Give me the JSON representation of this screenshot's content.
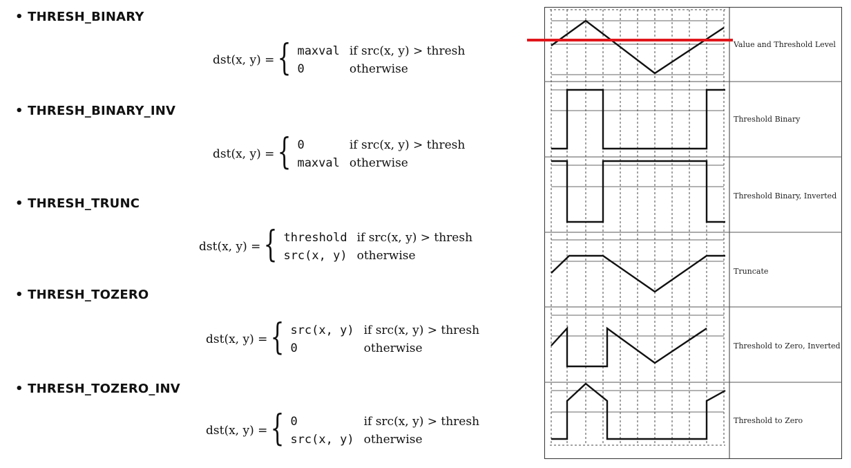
{
  "modes": [
    {
      "name": "• THRESH_BINARY",
      "lhs": "dst(x, y) = ",
      "cases": [
        [
          "maxval",
          "if src(x, y) > thresh"
        ],
        [
          "0",
          "otherwise"
        ]
      ]
    },
    {
      "name": "• THRESH_BINARY_INV",
      "lhs": "dst(x, y) = ",
      "cases": [
        [
          "0",
          "if src(x, y) > thresh"
        ],
        [
          "maxval",
          "otherwise"
        ]
      ]
    },
    {
      "name": "• THRESH_TRUNC",
      "lhs": "dst(x, y) = ",
      "cases": [
        [
          "threshold",
          "if src(x, y) > thresh"
        ],
        [
          "src(x, y)",
          "otherwise"
        ]
      ]
    },
    {
      "name": "• THRESH_TOZERO",
      "lhs": "dst(x, y) = ",
      "cases": [
        [
          "src(x, y)",
          "if src(x, y) > thresh"
        ],
        [
          "0",
          "otherwise"
        ]
      ]
    },
    {
      "name": "• THRESH_TOZERO_INV",
      "lhs": "dst(x, y) = ",
      "cases": [
        [
          "0",
          "if src(x, y) > thresh"
        ],
        [
          "src(x, y)",
          "otherwise"
        ]
      ]
    }
  ],
  "diagram": {
    "labels": [
      "Value and Threshold Level",
      "Threshold Binary",
      "Threshold Binary, Inverted",
      "Truncate",
      "Threshold to Zero, Inverted",
      "Threshold to Zero"
    ],
    "accent_color": "#e0161b"
  }
}
